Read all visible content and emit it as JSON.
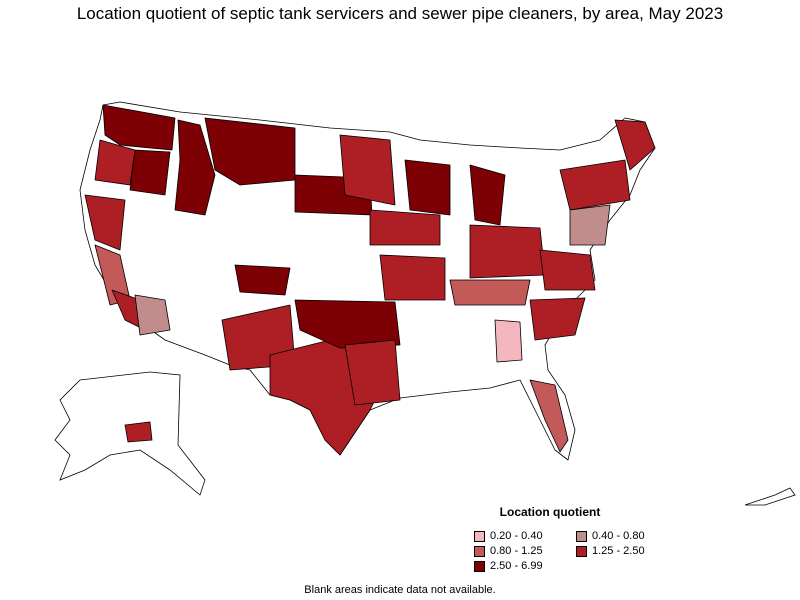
{
  "title": "Location quotient of septic tank servicers and sewer pipe cleaners, by area, May 2023",
  "legend": {
    "title": "Location quotient",
    "items": [
      {
        "label": "0.20 - 0.40",
        "color": "#f4b6bf"
      },
      {
        "label": "0.40 - 0.80",
        "color": "#c08c8c"
      },
      {
        "label": "0.80 - 1.25",
        "color": "#c25a5a"
      },
      {
        "label": "1.25 - 2.50",
        "color": "#ad1f24"
      },
      {
        "label": "2.50 - 6.99",
        "color": "#7d0004"
      }
    ]
  },
  "footnote": "Blank areas indicate data not available.",
  "colors": {
    "no_data": "#ffffff",
    "border": "#000000"
  }
}
